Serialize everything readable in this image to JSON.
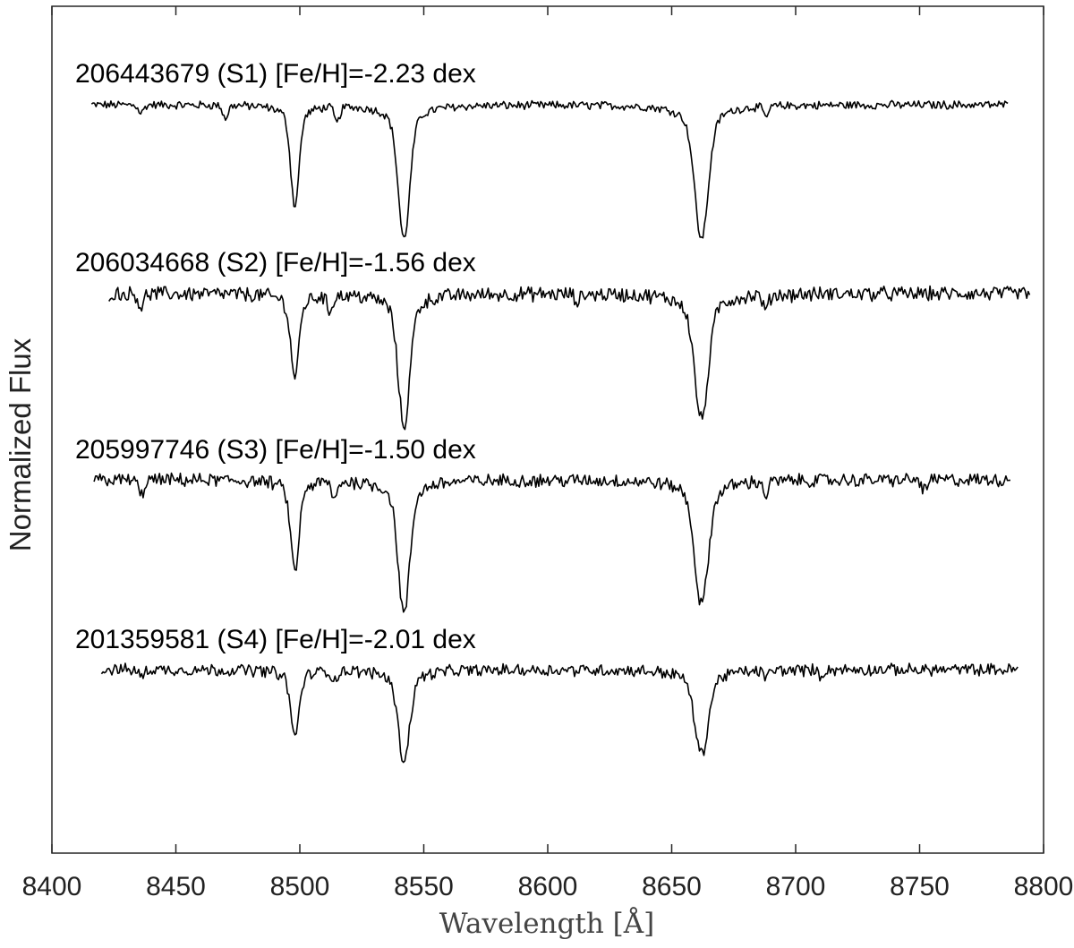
{
  "chart_data": {
    "type": "line",
    "title": "",
    "xlabel": "Wavelength [Å]",
    "ylabel": "Normalized Flux",
    "xlim": [
      8400,
      8800
    ],
    "x_ticks": [
      8400,
      8450,
      8500,
      8550,
      8600,
      8650,
      8700,
      8750,
      8800
    ],
    "x_tick_labels": [
      "8400",
      "8450",
      "8500",
      "8550",
      "8600",
      "8650",
      "8700",
      "8750",
      "8800"
    ],
    "grid": false,
    "legend": "none",
    "line_color": "#000000",
    "absorption_lines_A": [
      8498,
      8542,
      8662
    ],
    "series": [
      {
        "label": "206443679 (S1) [Fe/H]=-2.23 dex",
        "wavelength_range": [
          8416,
          8786
        ],
        "line_depths": [
          0.75,
          1.0,
          1.0
        ],
        "minor_lines": [
          [
            8436,
            0.06
          ],
          [
            8470,
            0.1
          ],
          [
            8515,
            0.12
          ],
          [
            8688,
            0.08
          ]
        ],
        "noise": 0.028
      },
      {
        "label": "206034668 (S2) [Fe/H]=-1.56 dex",
        "wavelength_range": [
          8423,
          8795
        ],
        "line_depths": [
          0.62,
          1.0,
          0.95
        ],
        "minor_lines": [
          [
            8436,
            0.1
          ],
          [
            8512,
            0.12
          ],
          [
            8612,
            0.06
          ],
          [
            8688,
            0.12
          ]
        ],
        "noise": 0.05
      },
      {
        "label": "205997746 (S3) [Fe/H]=-1.50 dex",
        "wavelength_range": [
          8417,
          8787
        ],
        "line_depths": [
          0.68,
          1.0,
          0.93
        ],
        "minor_lines": [
          [
            8436,
            0.12
          ],
          [
            8514,
            0.14
          ],
          [
            8688,
            0.1
          ],
          [
            8752,
            0.08
          ]
        ],
        "noise": 0.045
      },
      {
        "label": "201359581 (S4) [Fe/H]=-2.01 dex",
        "wavelength_range": [
          8420,
          8790
        ],
        "line_depths": [
          0.55,
          0.75,
          0.7
        ],
        "minor_lines": [
          [
            8436,
            0.06
          ],
          [
            8514,
            0.08
          ],
          [
            8688,
            0.06
          ],
          [
            8710,
            0.05
          ]
        ],
        "noise": 0.045
      }
    ]
  }
}
